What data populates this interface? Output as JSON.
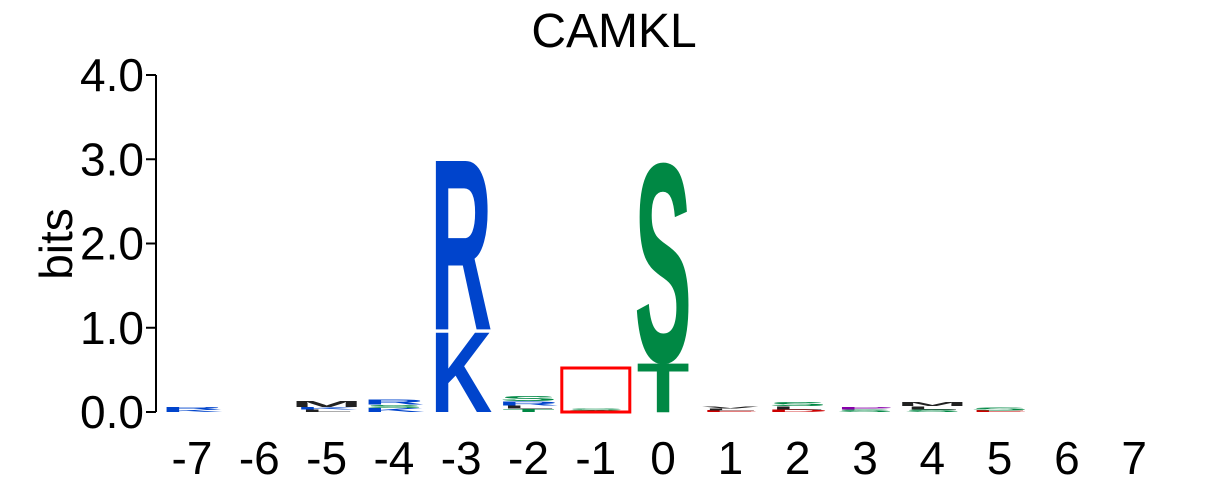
{
  "chart_data": {
    "type": "sequence-logo",
    "title": "CAMKL",
    "ylabel": "bits",
    "ylim": [
      0,
      4
    ],
    "yticks": [
      "0.0",
      "1.0",
      "2.0",
      "3.0",
      "4.0"
    ],
    "positions": [
      "-7",
      "-6",
      "-5",
      "-4",
      "-3",
      "-2",
      "-1",
      "0",
      "1",
      "2",
      "3",
      "4",
      "5",
      "6",
      "7"
    ],
    "highlight_position": "-1",
    "highlight_color": "#ff0000",
    "colors": {
      "basic": "#0044cc",
      "polar": "#008844",
      "hydrophobic": "#222222",
      "acidic": "#cc0000",
      "other": "#8800aa",
      "highlight": "#ff0000"
    },
    "stacks": [
      {
        "position": "-7",
        "letters": [
          {
            "letter": "K",
            "bits": 0.03,
            "color": "#0044cc"
          },
          {
            "letter": "R",
            "bits": 0.03,
            "color": "#0044cc"
          }
        ]
      },
      {
        "position": "-6",
        "letters": []
      },
      {
        "position": "-5",
        "letters": [
          {
            "letter": "L",
            "bits": 0.03,
            "color": "#222222"
          },
          {
            "letter": "K",
            "bits": 0.03,
            "color": "#0044cc"
          },
          {
            "letter": "M",
            "bits": 0.07,
            "color": "#222222"
          }
        ]
      },
      {
        "position": "-4",
        "letters": [
          {
            "letter": "K",
            "bits": 0.05,
            "color": "#0044cc"
          },
          {
            "letter": "S",
            "bits": 0.04,
            "color": "#008844"
          },
          {
            "letter": "R",
            "bits": 0.06,
            "color": "#0044cc"
          }
        ]
      },
      {
        "position": "-3",
        "letters": [
          {
            "letter": "K",
            "bits": 0.98,
            "color": "#0044cc"
          },
          {
            "letter": "R",
            "bits": 2.08,
            "color": "#0044cc"
          }
        ]
      },
      {
        "position": "-2",
        "letters": [
          {
            "letter": "T",
            "bits": 0.04,
            "color": "#008844"
          },
          {
            "letter": "L",
            "bits": 0.04,
            "color": "#222222"
          },
          {
            "letter": "R",
            "bits": 0.05,
            "color": "#0044cc"
          },
          {
            "letter": "S",
            "bits": 0.06,
            "color": "#008844"
          }
        ]
      },
      {
        "position": "-1",
        "letters": [
          {
            "letter": "A",
            "bits": 0.02,
            "color": "#222222"
          },
          {
            "letter": "S",
            "bits": 0.02,
            "color": "#008844"
          }
        ]
      },
      {
        "position": "0",
        "letters": [
          {
            "letter": "T",
            "bits": 0.6,
            "color": "#008844"
          },
          {
            "letter": "S",
            "bits": 2.42,
            "color": "#008844"
          }
        ]
      },
      {
        "position": "1",
        "letters": [
          {
            "letter": "E",
            "bits": 0.02,
            "color": "#cc0000"
          },
          {
            "letter": "L",
            "bits": 0.02,
            "color": "#222222"
          },
          {
            "letter": "V",
            "bits": 0.02,
            "color": "#222222"
          }
        ]
      },
      {
        "position": "2",
        "letters": [
          {
            "letter": "D",
            "bits": 0.03,
            "color": "#cc0000"
          },
          {
            "letter": "L",
            "bits": 0.04,
            "color": "#222222"
          },
          {
            "letter": "S",
            "bits": 0.05,
            "color": "#008844"
          }
        ]
      },
      {
        "position": "3",
        "letters": [
          {
            "letter": "S",
            "bits": 0.03,
            "color": "#008844"
          },
          {
            "letter": "P",
            "bits": 0.03,
            "color": "#8800aa"
          }
        ]
      },
      {
        "position": "4",
        "letters": [
          {
            "letter": "S",
            "bits": 0.03,
            "color": "#008844"
          },
          {
            "letter": "L",
            "bits": 0.04,
            "color": "#222222"
          },
          {
            "letter": "M",
            "bits": 0.05,
            "color": "#222222"
          }
        ]
      },
      {
        "position": "5",
        "letters": [
          {
            "letter": "E",
            "bits": 0.02,
            "color": "#cc0000"
          },
          {
            "letter": "S",
            "bits": 0.04,
            "color": "#008844"
          }
        ]
      },
      {
        "position": "6",
        "letters": []
      },
      {
        "position": "7",
        "letters": []
      }
    ]
  }
}
